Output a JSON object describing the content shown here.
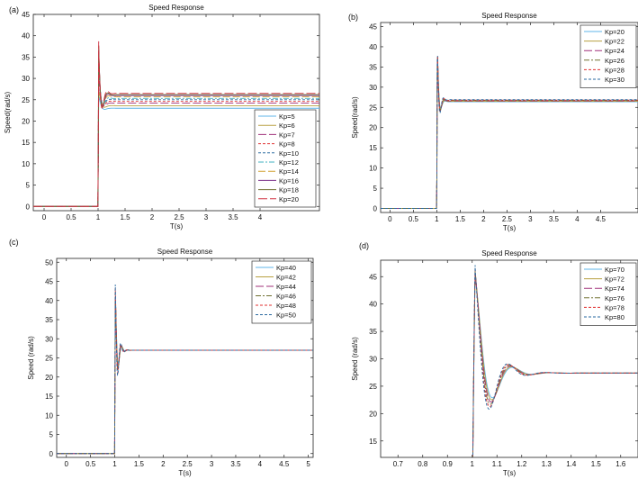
{
  "chart_data": [
    {
      "type": "line",
      "panel_label": "(a)",
      "title": "Speed Response",
      "xlabel": "T(s)",
      "ylabel": "Speed(rad/s)",
      "xlim": [
        -0.2,
        5.1
      ],
      "ylim": [
        -1,
        45
      ],
      "xticks": [
        0,
        0.5,
        1,
        1.5,
        2,
        2.5,
        3,
        3.5,
        4
      ],
      "xtick_labels": [
        "0",
        "0.5",
        "1",
        "1.5",
        "2",
        "2.5",
        "3",
        "3.5",
        "4"
      ],
      "yticks": [
        0,
        5,
        10,
        15,
        20,
        25,
        30,
        35,
        40,
        45
      ],
      "ytick_labels": [
        "0",
        "5",
        "10",
        "15",
        "20",
        "25",
        "30",
        "35",
        "40",
        "45"
      ],
      "grid": false,
      "legend_position": "bottom-right",
      "step_time": 1.0,
      "series": [
        {
          "name": "Kp=5",
          "color": "#5fb4e8",
          "dash": "",
          "steady": 23.0,
          "peak": 26.0,
          "decay": 0.05,
          "freq": 35
        },
        {
          "name": "Kp=6",
          "color": "#b8a040",
          "dash": "",
          "steady": 23.6,
          "peak": 27.5,
          "decay": 0.05,
          "freq": 36
        },
        {
          "name": "Kp=7",
          "color": "#a0307a",
          "dash": "9 3",
          "steady": 24.2,
          "peak": 30.0,
          "decay": 0.05,
          "freq": 38
        },
        {
          "name": "Kp=8",
          "color": "#e03030",
          "dash": "3 2",
          "steady": 24.6,
          "peak": 31.0,
          "decay": 0.05,
          "freq": 40
        },
        {
          "name": "Kp=10",
          "color": "#2a6aa0",
          "dash": "3 2",
          "steady": 25.0,
          "peak": 33.0,
          "decay": 0.05,
          "freq": 42
        },
        {
          "name": "Kp=12",
          "color": "#40b0c0",
          "dash": "6 2 2 2",
          "steady": 25.3,
          "peak": 34.5,
          "decay": 0.05,
          "freq": 44
        },
        {
          "name": "Kp=14",
          "color": "#d0a030",
          "dash": "8 3",
          "steady": 25.7,
          "peak": 36.0,
          "decay": 0.05,
          "freq": 46
        },
        {
          "name": "Kp=16",
          "color": "#7a2f8a",
          "dash": "",
          "steady": 26.0,
          "peak": 38.0,
          "decay": 0.05,
          "freq": 48
        },
        {
          "name": "Kp=18",
          "color": "#707030",
          "dash": "",
          "steady": 26.2,
          "peak": 39.0,
          "decay": 0.05,
          "freq": 50
        },
        {
          "name": "Kp=20",
          "color": "#d03040",
          "dash": "10 3",
          "steady": 26.5,
          "peak": 40.0,
          "decay": 0.05,
          "freq": 52
        }
      ]
    },
    {
      "type": "line",
      "panel_label": "(b)",
      "title": "Speed Response",
      "xlabel": "T(s)",
      "ylabel": "Speed(rad/s)",
      "xlim": [
        -0.2,
        5.3
      ],
      "ylim": [
        -1,
        46
      ],
      "xticks": [
        0,
        0.5,
        1,
        1.5,
        2,
        2.5,
        3,
        3.5,
        4,
        4.5
      ],
      "xtick_labels": [
        "0",
        "0.5",
        "1",
        "1.5",
        "2",
        "2.5",
        "3",
        "3.5",
        "4",
        "4.5"
      ],
      "yticks": [
        0,
        5,
        10,
        15,
        20,
        25,
        30,
        35,
        40,
        45
      ],
      "ytick_labels": [
        "0",
        "5",
        "10",
        "15",
        "20",
        "25",
        "30",
        "35",
        "40",
        "45"
      ],
      "grid": false,
      "legend_position": "top-right",
      "step_time": 1.0,
      "series": [
        {
          "name": "Kp=20",
          "color": "#5fb4e8",
          "dash": "",
          "steady": 26.4,
          "peak": 38.0,
          "decay": 0.04,
          "freq": 55
        },
        {
          "name": "Kp=22",
          "color": "#b8a040",
          "dash": "",
          "steady": 26.5,
          "peak": 39.0,
          "decay": 0.04,
          "freq": 57
        },
        {
          "name": "Kp=24",
          "color": "#a0307a",
          "dash": "9 3",
          "steady": 26.6,
          "peak": 40.0,
          "decay": 0.04,
          "freq": 59
        },
        {
          "name": "Kp=26",
          "color": "#707030",
          "dash": "6 2 2 2",
          "steady": 26.7,
          "peak": 40.5,
          "decay": 0.04,
          "freq": 61
        },
        {
          "name": "Kp=28",
          "color": "#e03030",
          "dash": "3 2",
          "steady": 26.8,
          "peak": 41.0,
          "decay": 0.04,
          "freq": 63
        },
        {
          "name": "Kp=30",
          "color": "#2a6aa0",
          "dash": "3 2",
          "steady": 26.9,
          "peak": 42.0,
          "decay": 0.04,
          "freq": 65
        }
      ]
    },
    {
      "type": "line",
      "panel_label": "(c)",
      "title": "Speed Response",
      "xlabel": "T(s)",
      "ylabel": "Speed (rad/s)",
      "xlim": [
        -0.2,
        5.1
      ],
      "ylim": [
        -1,
        51
      ],
      "xticks": [
        0,
        0.5,
        1,
        1.5,
        2,
        2.5,
        3,
        3.5,
        4,
        4.5,
        5
      ],
      "xtick_labels": [
        "0",
        "0.5",
        "1",
        "1.5",
        "2",
        "2.5",
        "3",
        "3.5",
        "4",
        "4.5",
        "5"
      ],
      "yticks": [
        0,
        5,
        10,
        15,
        20,
        25,
        30,
        35,
        40,
        45,
        50
      ],
      "ytick_labels": [
        "0",
        "5",
        "10",
        "15",
        "20",
        "25",
        "30",
        "35",
        "40",
        "45",
        "50"
      ],
      "grid": false,
      "legend_position": "top-right",
      "step_time": 1.0,
      "series": [
        {
          "name": "Kp=40",
          "color": "#5fb4e8",
          "dash": "",
          "steady": 27.0,
          "peak": 40.0,
          "decay": 0.05,
          "freq": 70
        },
        {
          "name": "Kp=42",
          "color": "#b8a040",
          "dash": "",
          "steady": 27.0,
          "peak": 41.5,
          "decay": 0.05,
          "freq": 72
        },
        {
          "name": "Kp=44",
          "color": "#a0307a",
          "dash": "9 3",
          "steady": 27.0,
          "peak": 42.5,
          "decay": 0.05,
          "freq": 74
        },
        {
          "name": "Kp=46",
          "color": "#707030",
          "dash": "6 2 2 2",
          "steady": 27.0,
          "peak": 43.5,
          "decay": 0.05,
          "freq": 76
        },
        {
          "name": "Kp=48",
          "color": "#e03030",
          "dash": "3 2",
          "steady": 27.0,
          "peak": 44.5,
          "decay": 0.05,
          "freq": 78
        },
        {
          "name": "Kp=50",
          "color": "#2a6aa0",
          "dash": "3 2",
          "steady": 27.0,
          "peak": 45.5,
          "decay": 0.05,
          "freq": 80
        }
      ]
    },
    {
      "type": "line",
      "panel_label": "(d)",
      "title": "Speed Response",
      "xlabel": "T(s)",
      "ylabel": "Speed (rad/s)",
      "xlim": [
        0.63,
        1.67
      ],
      "ylim": [
        12,
        48
      ],
      "xticks": [
        0.7,
        0.8,
        0.9,
        1,
        1.1,
        1.2,
        1.3,
        1.4,
        1.5,
        1.6
      ],
      "xtick_labels": [
        "0.7",
        "0.8",
        "0.9",
        "1",
        "1.1",
        "1.2",
        "1.3",
        "1.4",
        "1.5",
        "1.6"
      ],
      "yticks": [
        15,
        20,
        25,
        30,
        35,
        40,
        45
      ],
      "ytick_labels": [
        "15",
        "20",
        "25",
        "30",
        "35",
        "40",
        "45"
      ],
      "grid": false,
      "legend_position": "top-right",
      "step_time": 1.0,
      "series": [
        {
          "name": "Kp=70",
          "color": "#5fb4e8",
          "dash": "",
          "steady": 27.4,
          "peak": 45.0,
          "decay": 0.055,
          "freq": 62
        },
        {
          "name": "Kp=72",
          "color": "#b8a040",
          "dash": "",
          "steady": 27.4,
          "peak": 45.5,
          "decay": 0.055,
          "freq": 63
        },
        {
          "name": "Kp=74",
          "color": "#a0307a",
          "dash": "9 3",
          "steady": 27.4,
          "peak": 46.0,
          "decay": 0.055,
          "freq": 64
        },
        {
          "name": "Kp=76",
          "color": "#707030",
          "dash": "6 2 2 2",
          "steady": 27.4,
          "peak": 46.5,
          "decay": 0.055,
          "freq": 65
        },
        {
          "name": "Kp=78",
          "color": "#e03030",
          "dash": "3 2",
          "steady": 27.4,
          "peak": 47.0,
          "decay": 0.055,
          "freq": 66
        },
        {
          "name": "Kp=80",
          "color": "#2a6aa0",
          "dash": "3 2",
          "steady": 27.4,
          "peak": 47.5,
          "decay": 0.055,
          "freq": 67
        }
      ]
    }
  ]
}
